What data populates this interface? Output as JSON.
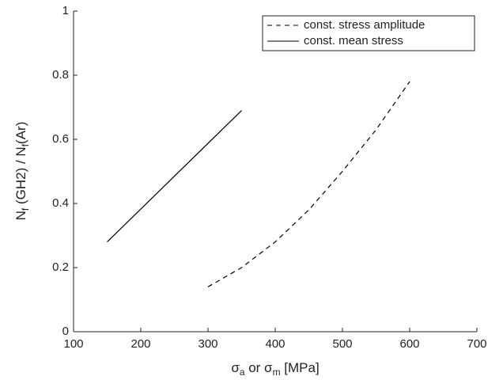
{
  "chart_data": {
    "type": "line",
    "xlabel": [
      "σ",
      "a",
      " or σ",
      "m",
      " [MPa]"
    ],
    "ylabel": [
      "N",
      "f",
      " (GH2) / N",
      "f",
      "(Ar)"
    ],
    "series": [
      {
        "name": "const. stress amplitude",
        "color": "#000000",
        "style": "dashed",
        "x": [
          300,
          350,
          400,
          450,
          500,
          550,
          600
        ],
        "values": [
          0.14,
          0.2,
          0.28,
          0.38,
          0.5,
          0.63,
          0.78
        ]
      },
      {
        "name": "const. mean stress",
        "color": "#000000",
        "style": "solid",
        "x": [
          150,
          350
        ],
        "values": [
          0.28,
          0.69
        ]
      }
    ],
    "xlim": [
      100,
      700
    ],
    "xticks": [
      100,
      200,
      300,
      400,
      500,
      600,
      700
    ],
    "ylim": [
      0,
      1
    ],
    "yticks": [
      0,
      0.2,
      0.4,
      0.6,
      0.8,
      1
    ],
    "legend": "upper right",
    "grid": false
  }
}
